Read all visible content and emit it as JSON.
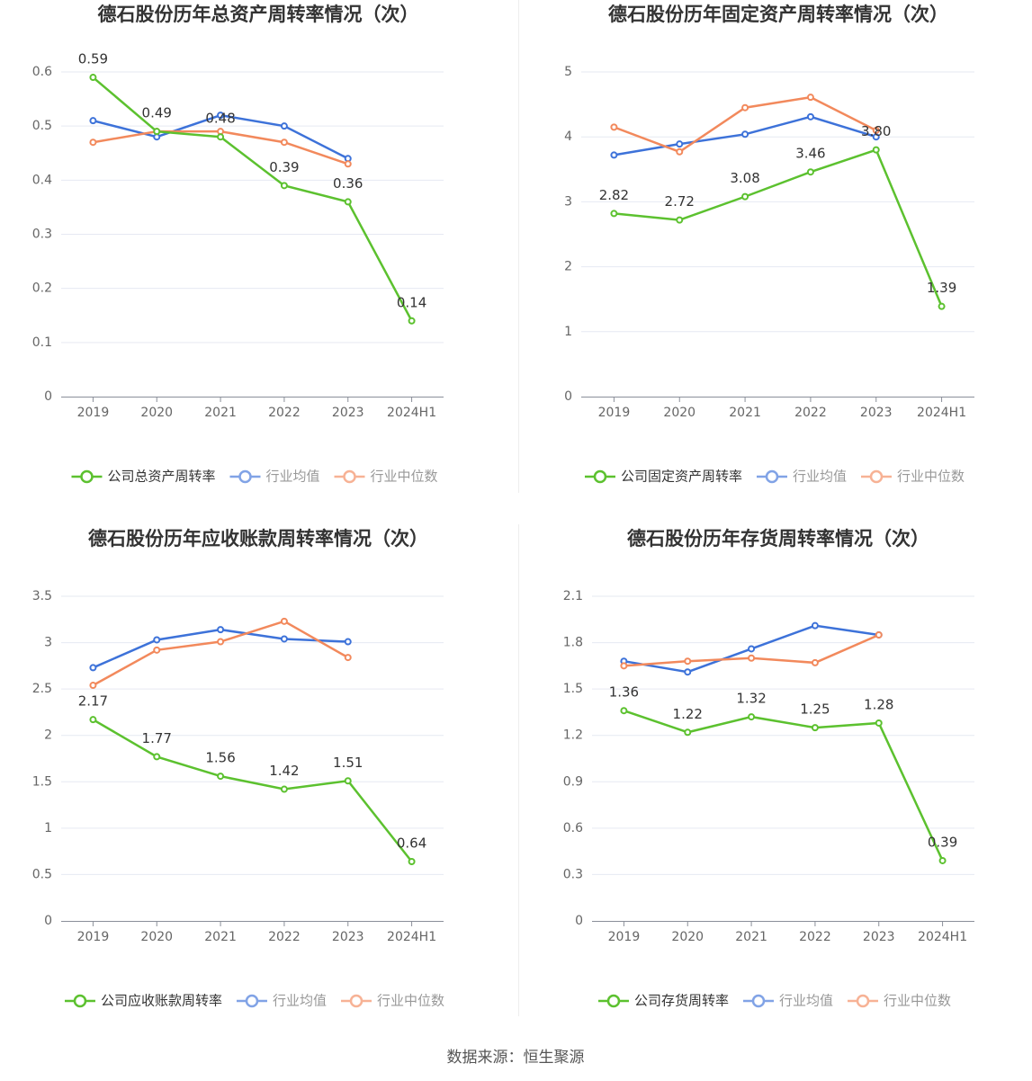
{
  "chart_data": [
    {
      "type": "line",
      "title": "德石股份历年总资产周转率情况（次）",
      "categories": [
        "2019",
        "2020",
        "2021",
        "2022",
        "2023",
        "2024H1"
      ],
      "ylim": [
        0,
        0.6
      ],
      "yticks": [
        0,
        0.1,
        0.2,
        0.3,
        0.4,
        0.5,
        0.6
      ],
      "grid": true,
      "series": [
        {
          "name": "公司总资产周转率",
          "color": "#5cc12f",
          "values": [
            0.59,
            0.49,
            0.48,
            0.39,
            0.36,
            0.14
          ]
        },
        {
          "name": "行业均值",
          "color": "#3d72d9",
          "values": [
            0.51,
            0.48,
            0.52,
            0.5,
            0.44,
            null
          ]
        },
        {
          "name": "行业中位数",
          "color": "#f2895c",
          "values": [
            0.47,
            0.49,
            0.49,
            0.47,
            0.43,
            null
          ]
        }
      ]
    },
    {
      "type": "line",
      "title": "德石股份历年固定资产周转率情况（次）",
      "categories": [
        "2019",
        "2020",
        "2021",
        "2022",
        "2023",
        "2024H1"
      ],
      "ylim": [
        0,
        5
      ],
      "yticks": [
        0,
        1,
        2,
        3,
        4,
        5
      ],
      "grid": true,
      "series": [
        {
          "name": "公司固定资产周转率",
          "color": "#5cc12f",
          "values": [
            2.82,
            2.72,
            3.08,
            3.46,
            3.8,
            1.39
          ],
          "value_labels": [
            "2.82",
            "2.72",
            "3.08",
            "3.46",
            "3.80",
            "1.39"
          ]
        },
        {
          "name": "行业均值",
          "color": "#3d72d9",
          "values": [
            3.72,
            3.89,
            4.04,
            4.31,
            4.0,
            null
          ]
        },
        {
          "name": "行业中位数",
          "color": "#f2895c",
          "values": [
            4.15,
            3.77,
            4.45,
            4.61,
            4.1,
            null
          ]
        }
      ]
    },
    {
      "type": "line",
      "title": "德石股份历年应收账款周转率情况（次）",
      "categories": [
        "2019",
        "2020",
        "2021",
        "2022",
        "2023",
        "2024H1"
      ],
      "ylim": [
        0,
        3.5
      ],
      "yticks": [
        0,
        0.5,
        1,
        1.5,
        2,
        2.5,
        3,
        3.5
      ],
      "grid": true,
      "series": [
        {
          "name": "公司应收账款周转率",
          "color": "#5cc12f",
          "values": [
            2.17,
            1.77,
            1.56,
            1.42,
            1.51,
            0.64
          ]
        },
        {
          "name": "行业均值",
          "color": "#3d72d9",
          "values": [
            2.73,
            3.03,
            3.14,
            3.04,
            3.01,
            null
          ]
        },
        {
          "name": "行业中位数",
          "color": "#f2895c",
          "values": [
            2.54,
            2.92,
            3.01,
            3.23,
            2.84,
            null
          ]
        }
      ]
    },
    {
      "type": "line",
      "title": "德石股份历年存货周转率情况（次）",
      "categories": [
        "2019",
        "2020",
        "2021",
        "2022",
        "2023",
        "2024H1"
      ],
      "ylim": [
        0,
        2.1
      ],
      "yticks": [
        0,
        0.3,
        0.6,
        0.9,
        1.2,
        1.5,
        1.8,
        2.1
      ],
      "grid": true,
      "series": [
        {
          "name": "公司存货周转率",
          "color": "#5cc12f",
          "values": [
            1.36,
            1.22,
            1.32,
            1.25,
            1.28,
            0.39
          ]
        },
        {
          "name": "行业均值",
          "color": "#3d72d9",
          "values": [
            1.68,
            1.61,
            1.76,
            1.91,
            1.85,
            null
          ]
        },
        {
          "name": "行业中位数",
          "color": "#f2895c",
          "values": [
            1.65,
            1.68,
            1.7,
            1.67,
            1.85,
            null
          ]
        }
      ]
    }
  ],
  "source": "数据来源：恒生聚源"
}
